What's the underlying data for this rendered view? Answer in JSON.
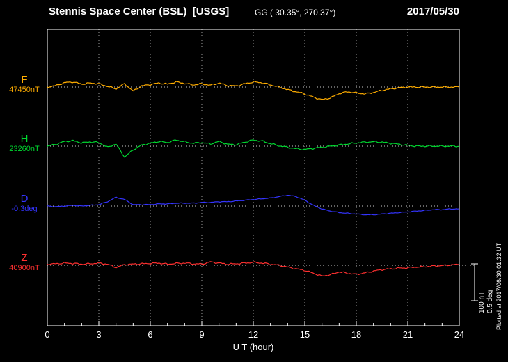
{
  "header": {
    "title": "Stennis Space Center (BSL)  [USGS]",
    "coords": "GG ( 30.35°, 270.37°)",
    "date": "2017/05/30"
  },
  "plotted_note": "Plotted at 2017/06/30 01:32 UT",
  "scale_bar": {
    "labels": [
      "100 nT",
      "0.5 deg"
    ]
  },
  "colors": {
    "background": "#000000",
    "text": "#ffffff",
    "frame": "#ffffff",
    "grid": "#9b9b9b",
    "baseline": "#c8c8c8"
  },
  "chart_data": {
    "type": "line",
    "title": "Stennis Space Center (BSL) magnetogram",
    "xlabel": "U T (hour)",
    "x_range": [
      0,
      24
    ],
    "x_ticks": [
      0,
      3,
      6,
      9,
      12,
      15,
      18,
      21,
      24
    ],
    "x_step_hours": 0.5,
    "grid": "dotted vertical at 3-hour intervals, dotted horizontal baseline per trace",
    "scale": {
      "nT_per_div": 100,
      "deg_per_div": 0.5
    },
    "series": [
      {
        "name": "F",
        "baseline_label": "47450nT",
        "unit": "nT",
        "color": "#ffad00",
        "values": [
          0,
          4,
          12,
          14,
          8,
          11,
          9,
          2,
          -5,
          9,
          -11,
          3,
          7,
          11,
          8,
          14,
          10,
          6,
          9,
          5,
          11,
          4,
          3,
          9,
          14,
          12,
          6,
          0,
          -7,
          -13,
          -19,
          -28,
          -35,
          -30,
          -18,
          -13,
          -16,
          -19,
          -15,
          -9,
          -5,
          -2,
          0,
          0,
          0,
          0,
          0,
          0,
          0
        ]
      },
      {
        "name": "H",
        "baseline_label": "23260nT",
        "unit": "nT",
        "color": "#00d930",
        "values": [
          0,
          5,
          13,
          15,
          9,
          12,
          10,
          -3,
          6,
          -30,
          -10,
          3,
          8,
          13,
          10,
          17,
          12,
          8,
          10,
          6,
          13,
          5,
          4,
          11,
          17,
          14,
          7,
          1,
          -3,
          -7,
          -9,
          -6,
          -3,
          0,
          3,
          6,
          9,
          11,
          12,
          11,
          8,
          5,
          2,
          0,
          0,
          0,
          0,
          0,
          0
        ]
      },
      {
        "name": "D",
        "baseline_label": "-0.3deg",
        "unit": "deg",
        "color": "#3434ff",
        "values": [
          0,
          -0.01,
          0,
          0.01,
          0,
          0.01,
          0.02,
          0.06,
          0.12,
          0.09,
          0.02,
          0.02,
          0.02,
          0.03,
          0.03,
          0.04,
          0.04,
          0.04,
          0.05,
          0.05,
          0.06,
          0.06,
          0.07,
          0.08,
          0.09,
          0.1,
          0.11,
          0.13,
          0.15,
          0.13,
          0.08,
          0.01,
          -0.04,
          -0.07,
          -0.09,
          -0.1,
          -0.11,
          -0.12,
          -0.12,
          -0.11,
          -0.1,
          -0.09,
          -0.08,
          -0.07,
          -0.06,
          -0.05,
          -0.05,
          -0.04,
          -0.04
        ]
      },
      {
        "name": "Z",
        "baseline_label": "40900nT",
        "unit": "nT",
        "color": "#ff3030",
        "values": [
          3,
          4,
          6,
          5,
          3,
          4,
          6,
          3,
          -6,
          2,
          3,
          4,
          5,
          6,
          3,
          5,
          6,
          4,
          3,
          9,
          6,
          3,
          4,
          6,
          8,
          6,
          3,
          0,
          -5,
          -10,
          -14,
          -22,
          -30,
          -26,
          -18,
          -22,
          -25,
          -21,
          -16,
          -12,
          -10,
          -8,
          -7,
          -5,
          -4,
          -2,
          -1,
          1,
          2
        ]
      }
    ]
  }
}
